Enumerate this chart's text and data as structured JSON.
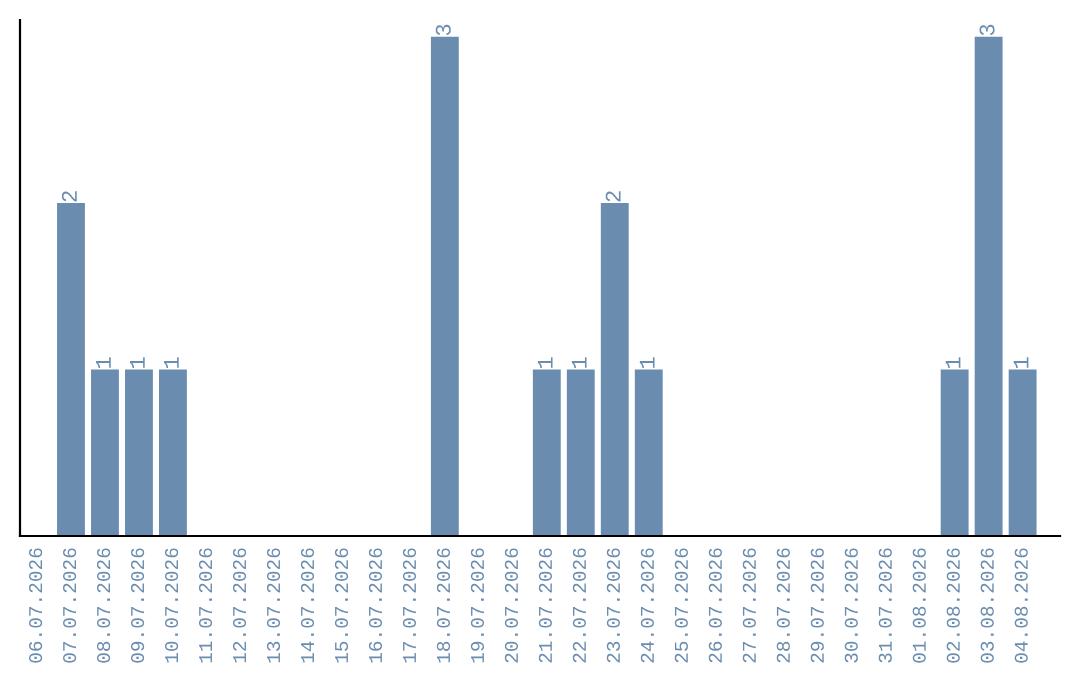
{
  "chart_data": {
    "type": "bar",
    "categories": [
      "06.07.2026",
      "07.07.2026",
      "08.07.2026",
      "09.07.2026",
      "10.07.2026",
      "11.07.2026",
      "12.07.2026",
      "13.07.2026",
      "14.07.2026",
      "15.07.2026",
      "16.07.2026",
      "17.07.2026",
      "18.07.2026",
      "19.07.2026",
      "20.07.2026",
      "21.07.2026",
      "22.07.2026",
      "23.07.2026",
      "24.07.2026",
      "25.07.2026",
      "26.07.2026",
      "27.07.2026",
      "28.07.2026",
      "29.07.2026",
      "30.07.2026",
      "31.07.2026",
      "01.08.2026",
      "02.08.2026",
      "03.08.2026",
      "04.08.2026"
    ],
    "values": [
      0,
      2,
      1,
      1,
      1,
      0,
      0,
      0,
      0,
      0,
      0,
      0,
      3,
      0,
      0,
      1,
      1,
      2,
      1,
      0,
      0,
      0,
      0,
      0,
      0,
      0,
      0,
      1,
      3,
      1
    ],
    "value_labels": [
      null,
      "2",
      "1",
      "1",
      "1",
      null,
      null,
      null,
      null,
      null,
      null,
      null,
      "3",
      null,
      null,
      "1",
      "1",
      "2",
      "1",
      null,
      null,
      null,
      null,
      null,
      null,
      null,
      null,
      "1",
      "3",
      "1"
    ],
    "color": "#6a8caf",
    "ylim": [
      0,
      3.1
    ],
    "tick_labels": "x",
    "grid": false,
    "legend": false
  }
}
